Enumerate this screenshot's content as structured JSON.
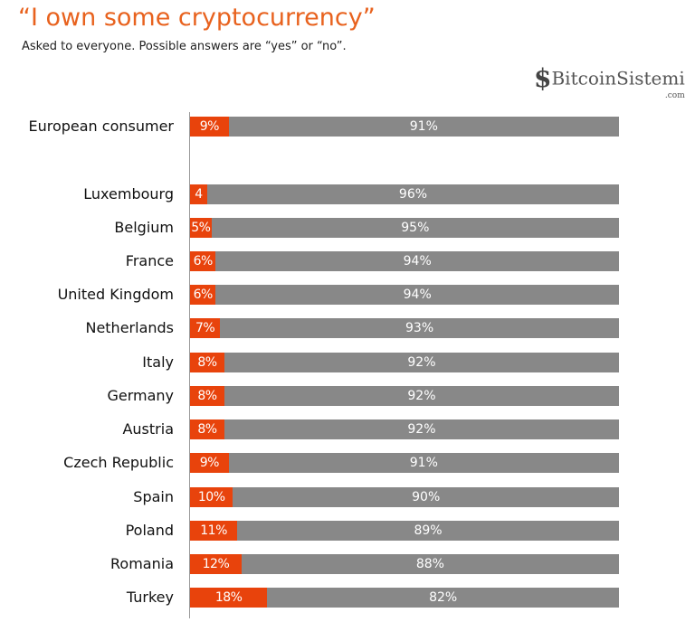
{
  "chart_data": {
    "type": "bar",
    "stacked": true,
    "orientation": "horizontal",
    "title": "“I own some cryptocurrency”",
    "subtitle": "Asked to everyone. Possible answers are “yes” or “no”.",
    "xlim": [
      0,
      100
    ],
    "grid": false,
    "categories": [
      "European consumer",
      "Luxembourg",
      "Belgium",
      "France",
      "United Kingdom",
      "Netherlands",
      "Italy",
      "Germany",
      "Austria",
      "Czech Republic",
      "Spain",
      "Poland",
      "Romania",
      "Turkey"
    ],
    "series": [
      {
        "values": [
          9,
          4,
          5,
          6,
          6,
          7,
          8,
          8,
          8,
          9,
          10,
          11,
          12,
          18
        ],
        "labels": [
          "9%",
          "4",
          "5%",
          "6%",
          "6%",
          "7%",
          "8%",
          "8%",
          "8%",
          "9%",
          "10%",
          "11%",
          "12%",
          "18%"
        ],
        "color": "#e8430c"
      },
      {
        "values": [
          91,
          96,
          95,
          94,
          94,
          93,
          92,
          92,
          92,
          91,
          90,
          89,
          88,
          82
        ],
        "labels": [
          "91%",
          "96%",
          "95%",
          "94%",
          "94%",
          "93%",
          "92%",
          "92%",
          "92%",
          "91%",
          "90%",
          "89%",
          "88%",
          "82%"
        ],
        "color": "#888888"
      }
    ]
  },
  "watermark": {
    "text": "BitcoinSistemi",
    ".com": ".com",
    "suffix": ".com"
  }
}
